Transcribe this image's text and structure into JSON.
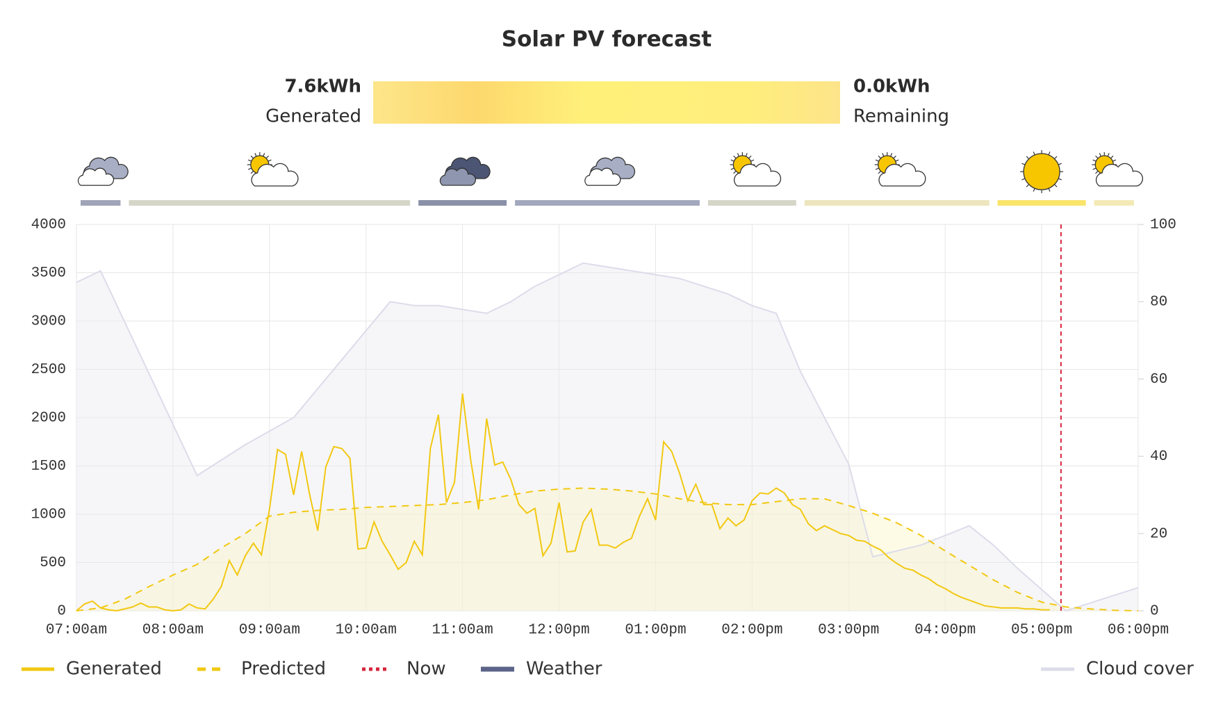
{
  "summary": {
    "generated": "7.6kWh",
    "generated_label": "Generated",
    "remaining": "0.0kWh",
    "remaining_label": "Remaining"
  },
  "chart_data": {
    "type": "line",
    "title": "Solar PV forecast",
    "xlim": [
      "07:00am",
      "06:00pm"
    ],
    "xticks": [
      "07:00am",
      "08:00am",
      "09:00am",
      "10:00am",
      "11:00am",
      "12:00pm",
      "01:00pm",
      "02:00pm",
      "03:00pm",
      "04:00pm",
      "05:00pm",
      "06:00pm"
    ],
    "ylim": [
      0,
      4000
    ],
    "yticks": [
      0,
      500,
      1000,
      1500,
      2000,
      2500,
      3000,
      3500,
      4000
    ],
    "y2lim": [
      0,
      100
    ],
    "y2ticks": [
      0,
      20,
      40,
      60,
      80,
      100
    ],
    "grid": true,
    "series": [
      {
        "name": "Generated",
        "color": "#f2c811",
        "style": "solid",
        "x": [
          "07:00am",
          "07:05am",
          "07:10am",
          "07:15am",
          "07:20am",
          "07:25am",
          "07:30am",
          "07:35am",
          "07:40am",
          "07:45am",
          "07:50am",
          "07:55am",
          "08:00am",
          "08:05am",
          "08:10am",
          "08:15am",
          "08:20am",
          "08:25am",
          "08:30am",
          "08:35am",
          "08:40am",
          "08:45am",
          "08:50am",
          "08:55am",
          "09:00am",
          "09:05am",
          "09:10am",
          "09:15am",
          "09:20am",
          "09:25am",
          "09:30am",
          "09:35am",
          "09:40am",
          "09:45am",
          "09:50am",
          "09:55am",
          "10:00am",
          "10:05am",
          "10:10am",
          "10:15am",
          "10:20am",
          "10:25am",
          "10:30am",
          "10:35am",
          "10:40am",
          "10:45am",
          "10:50am",
          "10:55am",
          "11:00am",
          "11:05am",
          "11:10am",
          "11:15am",
          "11:20am",
          "11:25am",
          "11:30am",
          "11:35am",
          "11:40am",
          "11:45am",
          "11:50am",
          "11:55am",
          "12:00pm",
          "12:05pm",
          "12:10pm",
          "12:15pm",
          "12:20pm",
          "12:25pm",
          "12:30pm",
          "12:35pm",
          "12:40pm",
          "12:45pm",
          "12:50pm",
          "12:55pm",
          "01:00pm",
          "01:05pm",
          "01:10pm",
          "01:15pm",
          "01:20pm",
          "01:25pm",
          "01:30pm",
          "01:35pm",
          "01:40pm",
          "01:45pm",
          "01:50pm",
          "01:55pm",
          "02:00pm",
          "02:05pm",
          "02:10pm",
          "02:15pm",
          "02:20pm",
          "02:25pm",
          "02:30pm",
          "02:35pm",
          "02:40pm",
          "02:45pm",
          "02:50pm",
          "02:55pm",
          "03:00pm",
          "03:05pm",
          "03:10pm",
          "03:15pm",
          "03:20pm",
          "03:25pm",
          "03:30pm",
          "03:35pm",
          "03:40pm",
          "03:45pm",
          "03:50pm",
          "03:55pm",
          "04:00pm",
          "04:05pm",
          "04:10pm",
          "04:15pm",
          "04:20pm",
          "04:25pm",
          "04:30pm",
          "04:35pm",
          "04:40pm",
          "04:45pm",
          "04:50pm",
          "04:55pm",
          "05:00pm",
          "05:05pm"
        ],
        "values": [
          0,
          70,
          100,
          30,
          10,
          0,
          20,
          40,
          80,
          40,
          40,
          10,
          0,
          10,
          70,
          30,
          20,
          120,
          250,
          520,
          370,
          570,
          700,
          580,
          1050,
          1670,
          1620,
          1200,
          1650,
          1200,
          830,
          1490,
          1700,
          1680,
          1580,
          640,
          650,
          920,
          720,
          580,
          430,
          500,
          720,
          580,
          1680,
          2030,
          1120,
          1330,
          2250,
          1570,
          1050,
          1990,
          1510,
          1540,
          1360,
          1100,
          1010,
          1060,
          570,
          700,
          1120,
          610,
          620,
          920,
          1050,
          680,
          680,
          650,
          710,
          750,
          980,
          1160,
          940,
          1750,
          1650,
          1420,
          1140,
          1310,
          1100,
          1100,
          850,
          960,
          880,
          940,
          1140,
          1220,
          1210,
          1270,
          1220,
          1100,
          1050,
          900,
          830,
          880,
          840,
          800,
          780,
          730,
          720,
          670,
          630,
          550,
          490,
          440,
          420,
          370,
          330,
          270,
          230,
          180,
          140,
          110,
          80,
          50,
          40,
          30,
          30,
          30,
          20,
          20,
          10,
          10
        ]
      },
      {
        "name": "Predicted",
        "color": "#f2c811",
        "style": "dashed",
        "fill": "#fbf3c8",
        "x": [
          "07:00am",
          "07:15am",
          "07:30am",
          "07:45am",
          "08:00am",
          "08:15am",
          "08:30am",
          "08:45am",
          "09:00am",
          "09:15am",
          "09:30am",
          "09:45am",
          "10:00am",
          "10:15am",
          "10:30am",
          "10:45am",
          "11:00am",
          "11:15am",
          "11:30am",
          "11:45am",
          "12:00pm",
          "12:15pm",
          "12:30pm",
          "12:45pm",
          "01:00pm",
          "01:15pm",
          "01:30pm",
          "01:45pm",
          "02:00pm",
          "02:15pm",
          "02:30pm",
          "02:45pm",
          "03:00pm",
          "03:15pm",
          "03:30pm",
          "03:45pm",
          "04:00pm",
          "04:15pm",
          "04:30pm",
          "04:45pm",
          "05:00pm",
          "05:15pm",
          "05:30pm",
          "05:45pm",
          "06:00pm"
        ],
        "values": [
          0,
          30,
          120,
          250,
          370,
          480,
          650,
          800,
          980,
          1020,
          1040,
          1050,
          1070,
          1080,
          1090,
          1100,
          1120,
          1150,
          1200,
          1240,
          1260,
          1270,
          1260,
          1240,
          1210,
          1160,
          1120,
          1100,
          1100,
          1130,
          1160,
          1160,
          1090,
          1010,
          910,
          780,
          620,
          470,
          320,
          190,
          90,
          40,
          20,
          5,
          0
        ]
      },
      {
        "name": "Cloud cover",
        "color": "#dcdcea",
        "style": "solid",
        "axis": "y2",
        "fill": "#ececf2",
        "x": [
          "07:00am",
          "07:15am",
          "08:15am",
          "08:45am",
          "09:15am",
          "09:45am",
          "10:15am",
          "10:30am",
          "10:45am",
          "11:15am",
          "11:30am",
          "11:45am",
          "12:15pm",
          "12:45pm",
          "01:15pm",
          "01:45pm",
          "02:00pm",
          "02:15pm",
          "02:30pm",
          "03:00pm",
          "03:15pm",
          "03:45pm",
          "04:15pm",
          "04:30pm",
          "04:45pm",
          "05:15pm",
          "06:00pm"
        ],
        "values": [
          85,
          88,
          35,
          43,
          50,
          65,
          80,
          79,
          79,
          77,
          80,
          84,
          90,
          88,
          86,
          82,
          79,
          77,
          62,
          38,
          14,
          17,
          22,
          17,
          11,
          0,
          6
        ]
      }
    ],
    "now": {
      "name": "Now",
      "x": "05:12pm",
      "color": "#d7263d"
    },
    "weather": {
      "name": "Weather",
      "color": "#5b6488",
      "segments": [
        {
          "start": "07:00am",
          "end": "07:30am",
          "color": "#a0a4b8",
          "icon": "cloudy"
        },
        {
          "start": "07:30am",
          "end": "10:30am",
          "color": "#d5d5c8",
          "icon": "partly-cloudy"
        },
        {
          "start": "10:30am",
          "end": "11:30am",
          "color": "#8a90a8",
          "icon": "dark-cloudy"
        },
        {
          "start": "11:30am",
          "end": "01:30pm",
          "color": "#a3a8be",
          "icon": "cloudy"
        },
        {
          "start": "01:30pm",
          "end": "02:30pm",
          "color": "#d5d5c8",
          "icon": "partly-cloudy"
        },
        {
          "start": "02:30pm",
          "end": "04:30pm",
          "color": "#ede5bd",
          "icon": "partly-cloudy"
        },
        {
          "start": "04:30pm",
          "end": "05:30pm",
          "color": "#f9e56a",
          "icon": "sunny"
        },
        {
          "start": "05:30pm",
          "end": "06:00pm",
          "color": "#f3eab8",
          "icon": "partly-cloudy"
        }
      ]
    }
  }
}
